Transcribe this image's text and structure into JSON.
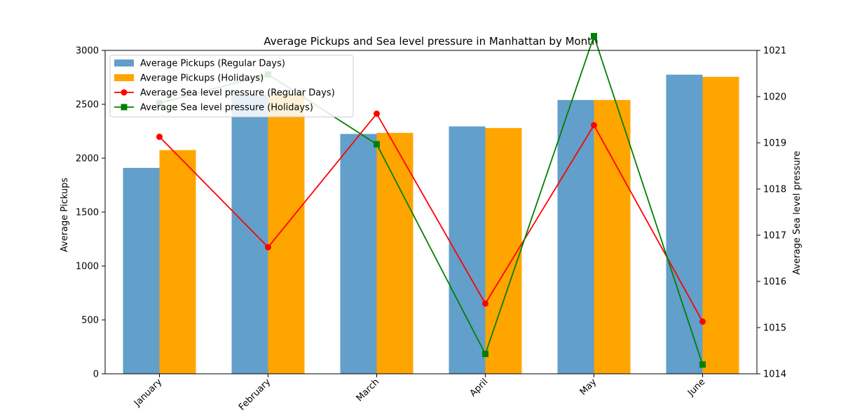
{
  "chart_data": {
    "type": "bar",
    "title": "Average Pickups and Sea level pressure in Manhattan by Month",
    "xlabel": "",
    "ylabel": "Average Pickups",
    "y2label": "Average Sea level pressure",
    "categories": [
      "January",
      "February",
      "March",
      "April",
      "May",
      "June"
    ],
    "ylim": [
      0,
      3000
    ],
    "yticks": [
      0,
      500,
      1000,
      1500,
      2000,
      2500,
      3000
    ],
    "y2lim": [
      1014,
      1021
    ],
    "y2ticks": [
      1014,
      1015,
      1016,
      1017,
      1018,
      1019,
      1020,
      1021
    ],
    "bar_series": [
      {
        "name": "Average Pickups (Regular Days)",
        "color": "#629fca",
        "values": [
          1910,
          2590,
          2225,
          2295,
          2540,
          2775
        ]
      },
      {
        "name": "Average Pickups (Holidays)",
        "color": "#ffa500",
        "values": [
          2075,
          2600,
          2235,
          2280,
          2540,
          2755
        ]
      }
    ],
    "line_series": [
      {
        "name": "Average Sea level pressure (Regular Days)",
        "color": "#ff0000",
        "marker": "circle",
        "values": [
          1019.13,
          1016.74,
          1019.63,
          1015.52,
          1019.38,
          1015.13
        ]
      },
      {
        "name": "Average Sea level pressure (Holidays)",
        "color": "#008000",
        "marker": "square",
        "values": [
          1019.86,
          1020.48,
          1018.97,
          1014.43,
          1021.31,
          1014.2
        ]
      }
    ],
    "legend_position": "top-left",
    "grid": false
  }
}
